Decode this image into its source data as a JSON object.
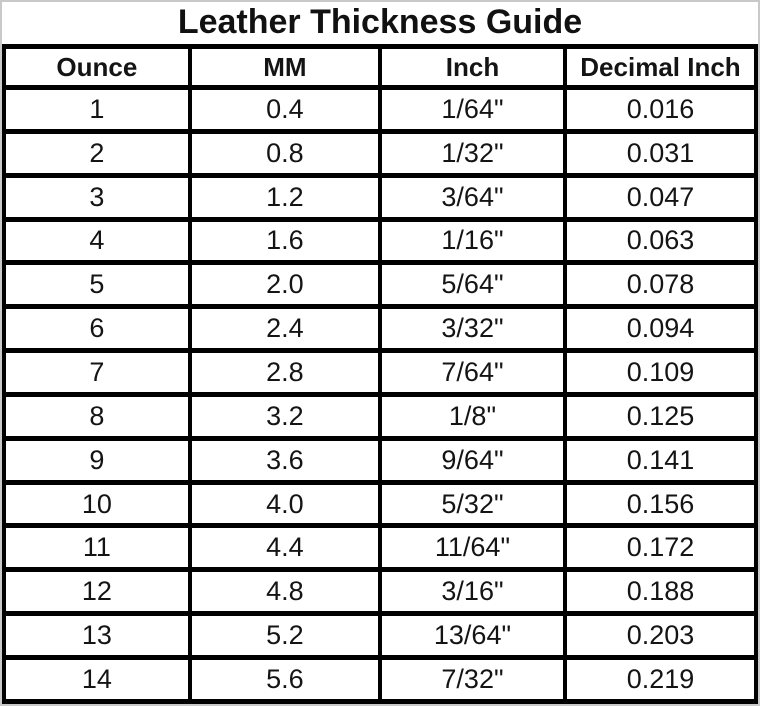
{
  "title": "Leather Thickness Guide",
  "chart_data": {
    "type": "table",
    "title": "Leather Thickness Guide",
    "columns": [
      "Ounce",
      "MM",
      "Inch",
      "Decimal Inch"
    ],
    "rows": [
      [
        "1",
        "0.4",
        "1/64\"",
        "0.016"
      ],
      [
        "2",
        "0.8",
        "1/32\"",
        "0.031"
      ],
      [
        "3",
        "1.2",
        "3/64\"",
        "0.047"
      ],
      [
        "4",
        "1.6",
        "1/16\"",
        "0.063"
      ],
      [
        "5",
        "2.0",
        "5/64\"",
        "0.078"
      ],
      [
        "6",
        "2.4",
        "3/32\"",
        "0.094"
      ],
      [
        "7",
        "2.8",
        "7/64\"",
        "0.109"
      ],
      [
        "8",
        "3.2",
        "1/8\"",
        "0.125"
      ],
      [
        "9",
        "3.6",
        "9/64\"",
        "0.141"
      ],
      [
        "10",
        "4.0",
        "5/32\"",
        "0.156"
      ],
      [
        "11",
        "4.4",
        "11/64\"",
        "0.172"
      ],
      [
        "12",
        "4.8",
        "3/16\"",
        "0.188"
      ],
      [
        "13",
        "5.2",
        "13/64\"",
        "0.203"
      ],
      [
        "14",
        "5.6",
        "7/32\"",
        "0.219"
      ]
    ],
    "layout": {
      "grid": "on",
      "border_color": "#000000",
      "background": "#ffffff",
      "text_color": "#141414"
    }
  }
}
